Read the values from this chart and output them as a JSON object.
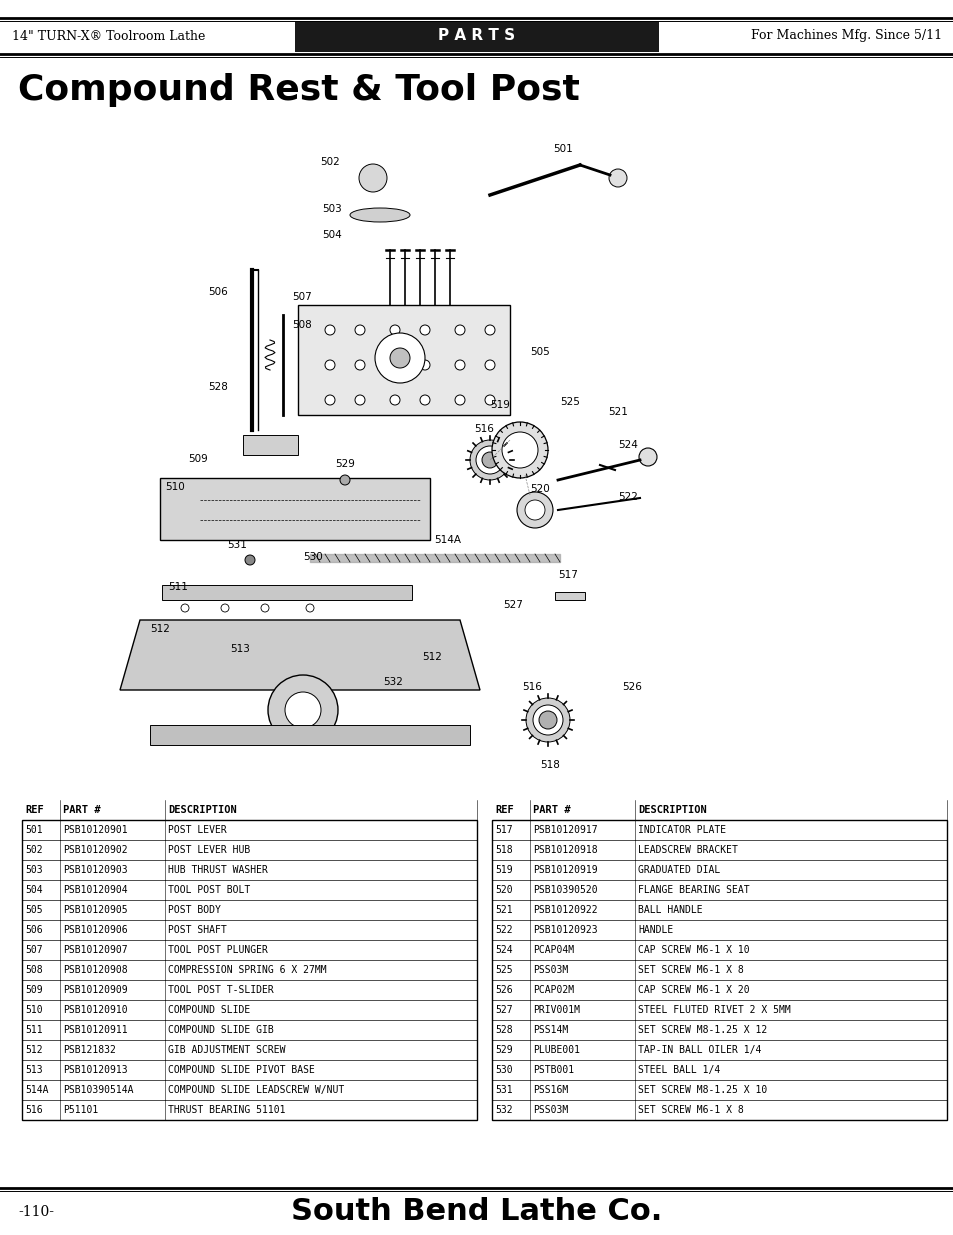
{
  "header_left": "14\" TURN-X® Toolroom Lathe",
  "header_center": "P A R T S",
  "header_right": "For Machines Mfg. Since 5/11",
  "title": "Compound Rest & Tool Post",
  "footer_left": "-110-",
  "footer_center": "South Bend Lathe Co.",
  "background_color": "#ffffff",
  "header_bg": "#1a1a1a",
  "header_text_color": "#ffffff",
  "table_left": [
    [
      "REF",
      "PART #",
      "DESCRIPTION"
    ],
    [
      "501",
      "PSB10120901",
      "POST LEVER"
    ],
    [
      "502",
      "PSB10120902",
      "POST LEVER HUB"
    ],
    [
      "503",
      "PSB10120903",
      "HUB THRUST WASHER"
    ],
    [
      "504",
      "PSB10120904",
      "TOOL POST BOLT"
    ],
    [
      "505",
      "PSB10120905",
      "POST BODY"
    ],
    [
      "506",
      "PSB10120906",
      "POST SHAFT"
    ],
    [
      "507",
      "PSB10120907",
      "TOOL POST PLUNGER"
    ],
    [
      "508",
      "PSB10120908",
      "COMPRESSION SPRING 6 X 27MM"
    ],
    [
      "509",
      "PSB10120909",
      "TOOL POST T-SLIDER"
    ],
    [
      "510",
      "PSB10120910",
      "COMPOUND SLIDE"
    ],
    [
      "511",
      "PSB10120911",
      "COMPOUND SLIDE GIB"
    ],
    [
      "512",
      "PSB121832",
      "GIB ADJUSTMENT SCREW"
    ],
    [
      "513",
      "PSB10120913",
      "COMPOUND SLIDE PIVOT BASE"
    ],
    [
      "514A",
      "PSB10390514A",
      "COMPOUND SLIDE LEADSCREW W/NUT"
    ],
    [
      "516",
      "P51101",
      "THRUST BEARING 51101"
    ]
  ],
  "table_right": [
    [
      "REF",
      "PART #",
      "DESCRIPTION"
    ],
    [
      "517",
      "PSB10120917",
      "INDICATOR PLATE"
    ],
    [
      "518",
      "PSB10120918",
      "LEADSCREW BRACKET"
    ],
    [
      "519",
      "PSB10120919",
      "GRADUATED DIAL"
    ],
    [
      "520",
      "PSB10390520",
      "FLANGE BEARING SEAT"
    ],
    [
      "521",
      "PSB10120922",
      "BALL HANDLE"
    ],
    [
      "522",
      "PSB10120923",
      "HANDLE"
    ],
    [
      "524",
      "PCAP04M",
      "CAP SCREW M6-1 X 10"
    ],
    [
      "525",
      "PSS03M",
      "SET SCREW M6-1 X 8"
    ],
    [
      "526",
      "PCAP02M",
      "CAP SCREW M6-1 X 20"
    ],
    [
      "527",
      "PRIV001M",
      "STEEL FLUTED RIVET 2 X 5MM"
    ],
    [
      "528",
      "PSS14M",
      "SET SCREW M8-1.25 X 12"
    ],
    [
      "529",
      "PLUBE001",
      "TAP-IN BALL OILER 1/4"
    ],
    [
      "530",
      "PSTB001",
      "STEEL BALL 1/4"
    ],
    [
      "531",
      "PSS16M",
      "SET SCREW M8-1.25 X 10"
    ],
    [
      "532",
      "PSS03M",
      "SET SCREW M6-1 X 8"
    ]
  ]
}
